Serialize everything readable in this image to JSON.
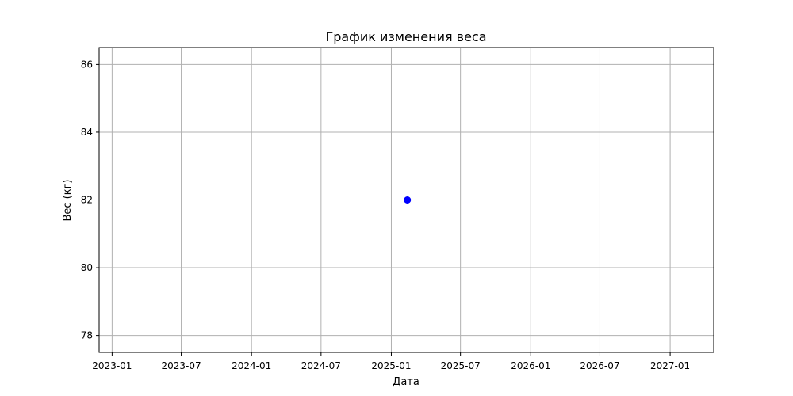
{
  "chart_data": {
    "type": "scatter",
    "title": "График изменения веса",
    "xlabel": "Дата",
    "ylabel": "Вес (кг)",
    "x_tick_labels": [
      "2023-01",
      "2023-07",
      "2024-01",
      "2024-07",
      "2025-01",
      "2025-07",
      "2026-01",
      "2026-07",
      "2027-01"
    ],
    "y_tick_labels": [
      "78",
      "80",
      "82",
      "84",
      "86"
    ],
    "xlim": [
      "2022-11-28",
      "2027-04-25"
    ],
    "ylim": [
      77.5,
      86.5
    ],
    "grid": true,
    "series": [
      {
        "x": [
          "2025-02-12"
        ],
        "y": [
          82
        ],
        "color": "#0000ff"
      }
    ]
  }
}
